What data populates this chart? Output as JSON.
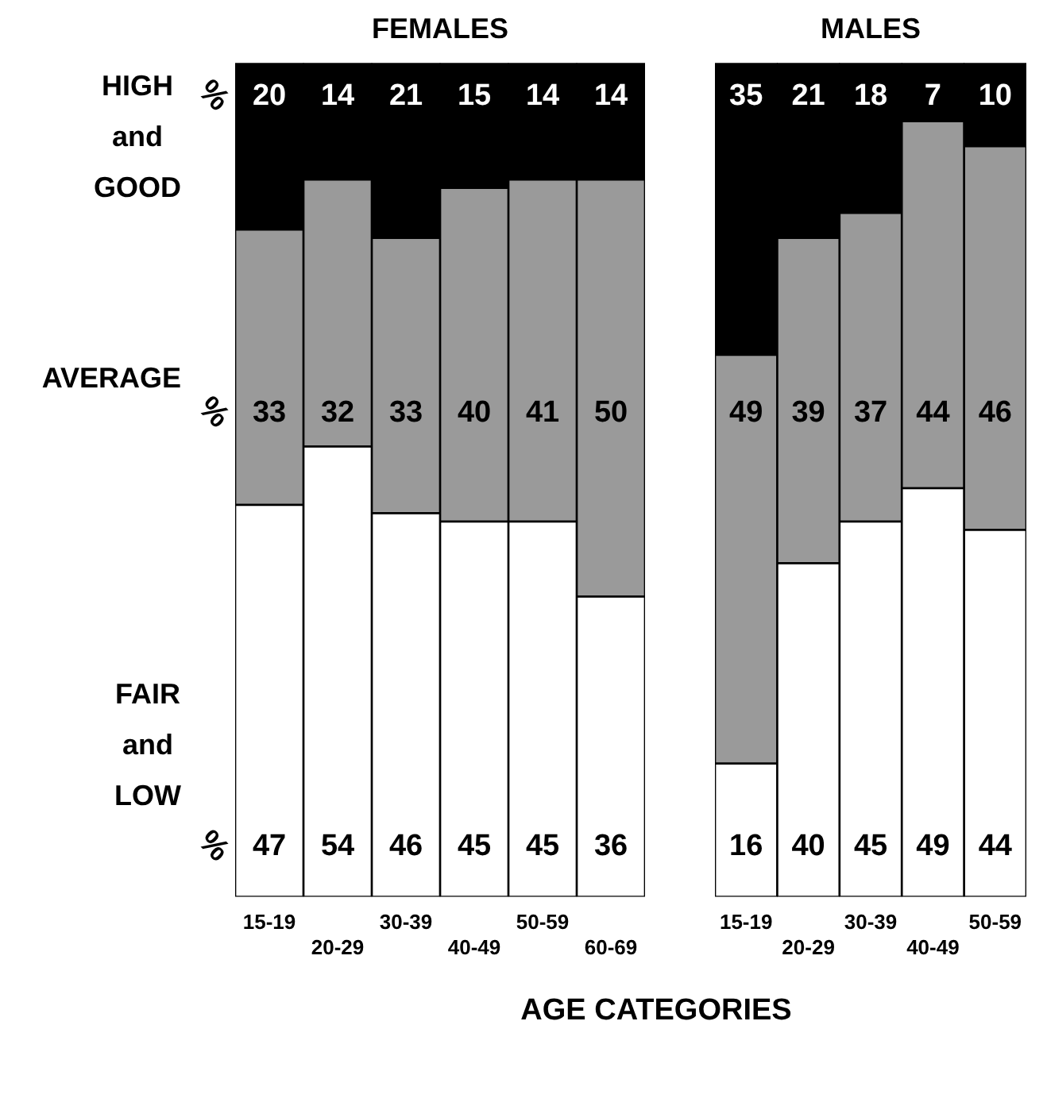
{
  "chart_data": [
    {
      "type": "bar",
      "title": "FEMALES",
      "xlabel": "AGE CATEGORIES",
      "categories": [
        "15-19",
        "20-29",
        "30-39",
        "40-49",
        "50-59",
        "60-69"
      ],
      "stacked": true,
      "data_labels": true,
      "tick_labels": "x",
      "legend": false,
      "grid": false,
      "series": [
        {
          "name": "FAIR and LOW",
          "color": "#ffffff",
          "values": [
            47,
            54,
            46,
            45,
            45,
            36
          ]
        },
        {
          "name": "AVERAGE",
          "color": "#9a9a9a",
          "values": [
            33,
            32,
            33,
            40,
            41,
            50
          ]
        },
        {
          "name": "HIGH and GOOD",
          "color": "#000000",
          "values": [
            20,
            14,
            21,
            15,
            14,
            14
          ]
        }
      ],
      "annotations": [
        "%",
        "%",
        "%"
      ]
    },
    {
      "type": "bar",
      "title": "MALES",
      "categories": [
        "15-19",
        "20-29",
        "30-39",
        "40-49",
        "50-59"
      ],
      "stacked": true,
      "data_labels": true,
      "tick_labels": "x",
      "legend": false,
      "grid": false,
      "series": [
        {
          "color": "#ffffff",
          "values": [
            16,
            40,
            45,
            49,
            44
          ]
        },
        {
          "color": "#9a9a9a",
          "values": [
            49,
            39,
            37,
            44,
            46
          ]
        },
        {
          "color": "#000000",
          "values": [
            35,
            21,
            18,
            7,
            10
          ]
        }
      ]
    }
  ]
}
